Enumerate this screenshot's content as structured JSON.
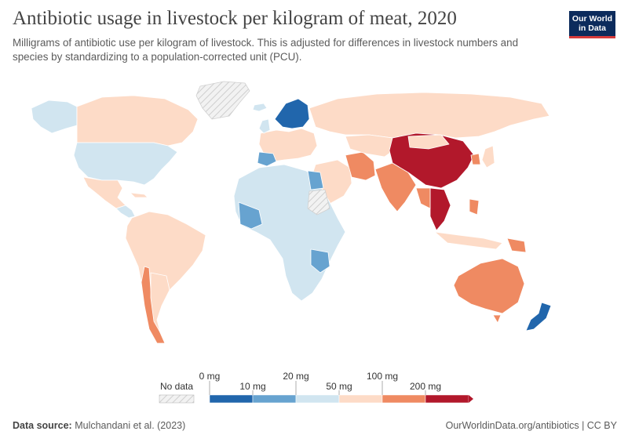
{
  "header": {
    "title": "Antibiotic usage in livestock per kilogram of meat, 2020",
    "subtitle": "Milligrams of antibiotic use per kilogram of livestock. This is adjusted for differences in livestock numbers and species by standardizing to a population-corrected unit (PCU)."
  },
  "logo": {
    "line1": "Our World",
    "line2": "in Data",
    "bg": "#0c2b5c",
    "accent": "#d73b3b"
  },
  "legend": {
    "no_data_label": "No data",
    "tick_labels": [
      "0 mg",
      "10 mg",
      "20 mg",
      "50 mg",
      "100 mg",
      "200 mg"
    ],
    "colors": [
      "#2166ac",
      "#67a3d0",
      "#d1e5f0",
      "#fddbc7",
      "#ef8a62",
      "#b2182b"
    ],
    "no_data_color": "#e4e4e4"
  },
  "footer": {
    "source_label": "Data source:",
    "source": "Mulchandani et al. (2023)",
    "url_license": "OurWorldinData.org/antibiotics | CC BY"
  }
}
